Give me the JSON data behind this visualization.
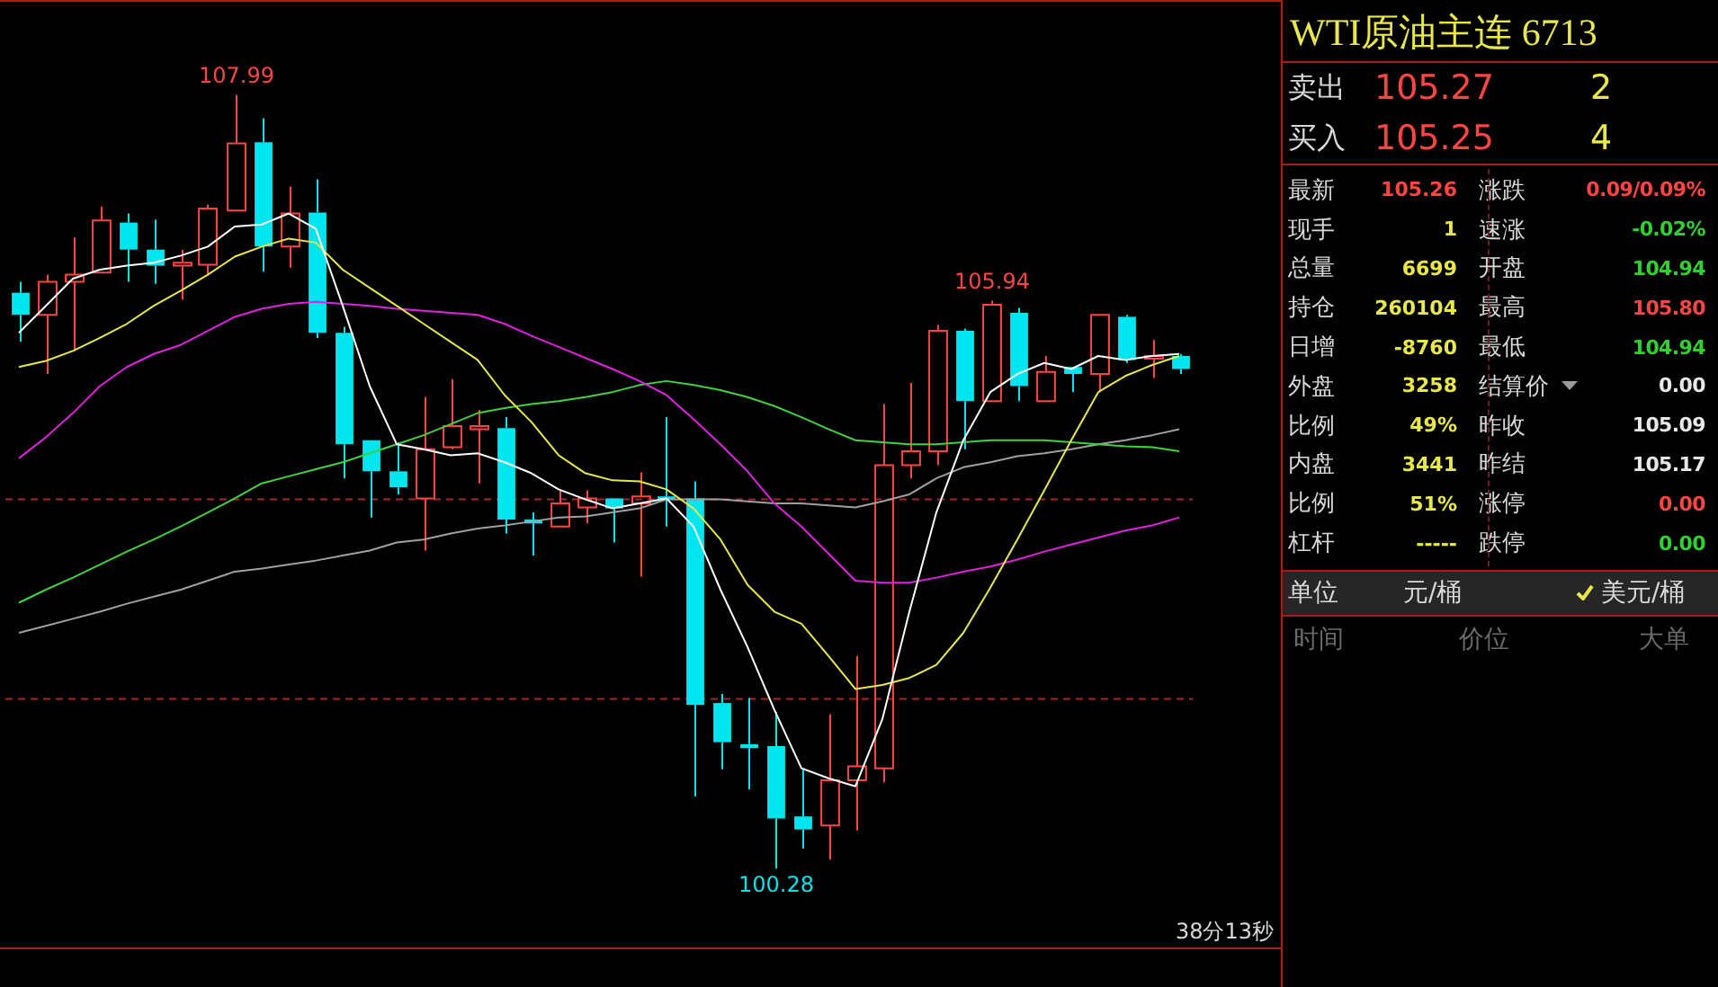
{
  "chart_data": [
    {
      "type": "candlestick",
      "categories": [
        null,
        null,
        null,
        null,
        null,
        null,
        null,
        null,
        null,
        null,
        null,
        null,
        null,
        null,
        null,
        null,
        null,
        null,
        null,
        null,
        null,
        null,
        null,
        null,
        null,
        null,
        null,
        null,
        null,
        null,
        null,
        null,
        null,
        null,
        null,
        null,
        null,
        null,
        null,
        null,
        null,
        null,
        null,
        null
      ],
      "ohlc": [
        [
          106.02,
          106.13,
          105.53,
          105.8
        ],
        [
          105.8,
          106.2,
          105.21,
          106.13
        ],
        [
          106.13,
          106.57,
          105.44,
          106.2
        ],
        [
          106.22,
          106.88,
          106.22,
          106.74
        ],
        [
          106.72,
          106.81,
          106.13,
          106.45
        ],
        [
          106.45,
          106.75,
          106.11,
          106.29
        ],
        [
          106.29,
          106.45,
          105.95,
          106.32
        ],
        [
          106.3,
          106.9,
          106.2,
          106.86
        ],
        [
          106.84,
          107.99,
          106.84,
          107.51
        ],
        [
          107.52,
          107.76,
          106.23,
          106.48
        ],
        [
          106.48,
          107.08,
          106.27,
          106.81
        ],
        [
          106.82,
          107.15,
          105.57,
          105.62
        ],
        [
          105.62,
          105.68,
          104.17,
          104.51
        ],
        [
          104.55,
          104.55,
          103.78,
          104.24
        ],
        [
          104.24,
          104.53,
          104.01,
          104.08
        ],
        [
          103.97,
          104.98,
          103.45,
          104.46
        ],
        [
          104.48,
          105.16,
          104.46,
          104.69
        ],
        [
          104.66,
          104.85,
          104.12,
          104.69
        ],
        [
          104.67,
          104.78,
          103.62,
          103.76
        ],
        [
          103.76,
          103.83,
          103.4,
          103.72
        ],
        [
          103.69,
          104.06,
          103.69,
          103.92
        ],
        [
          103.88,
          104.05,
          103.72,
          103.97
        ],
        [
          103.97,
          103.97,
          103.53,
          103.87
        ],
        [
          103.92,
          104.23,
          103.19,
          103.99
        ],
        [
          103.99,
          104.78,
          103.69,
          103.96
        ],
        [
          103.97,
          104.14,
          101.0,
          101.91
        ],
        [
          101.93,
          102.02,
          101.27,
          101.54
        ],
        [
          101.52,
          101.98,
          101.07,
          101.48
        ],
        [
          101.5,
          101.84,
          100.28,
          100.78
        ],
        [
          100.8,
          101.28,
          100.48,
          100.67
        ],
        [
          100.71,
          101.82,
          100.37,
          101.16
        ],
        [
          101.16,
          102.4,
          100.66,
          101.3
        ],
        [
          101.28,
          104.91,
          101.14,
          104.3
        ],
        [
          104.3,
          105.12,
          104.17,
          104.44
        ],
        [
          104.44,
          105.7,
          104.3,
          105.64
        ],
        [
          105.64,
          105.66,
          104.46,
          104.94
        ],
        [
          104.94,
          105.94,
          104.94,
          105.9
        ],
        [
          105.82,
          105.87,
          104.94,
          105.09
        ],
        [
          104.94,
          105.39,
          104.94,
          105.23
        ],
        [
          105.28,
          105.28,
          105.03,
          105.21
        ],
        [
          105.21,
          105.8,
          105.03,
          105.8
        ],
        [
          105.78,
          105.8,
          105.32,
          105.35
        ],
        [
          105.37,
          105.55,
          105.17,
          105.39
        ],
        [
          105.39,
          105.41,
          105.21,
          105.26
        ]
      ],
      "colors": [
        "#00e5ee",
        "#ff4444",
        "#ff4444",
        "#ff4444",
        "#00e5ee",
        "#00e5ee",
        "#ff4444",
        "#ff4444",
        "#ff4444",
        "#00e5ee",
        "#ff4444",
        "#00e5ee",
        "#00e5ee",
        "#00e5ee",
        "#00e5ee",
        "#ff4444",
        "#ff4444",
        "#ff4444",
        "#00e5ee",
        "#00e5ee",
        "#ff4444",
        "#ff4444",
        "#00e5ee",
        "#ff4444",
        "#00e5ee",
        "#00e5ee",
        "#00e5ee",
        "#00e5ee",
        "#00e5ee",
        "#00e5ee",
        "#ff4444",
        "#ff4444",
        "#ff4444",
        "#ff4444",
        "#ff4444",
        "#00e5ee",
        "#ff4444",
        "#00e5ee",
        "#ff4444",
        "#00e5ee",
        "#ff4444",
        "#00e5ee",
        "#ff4444",
        "#00e5ee"
      ],
      "value_labels": [
        null,
        null,
        null,
        null,
        null,
        null,
        null,
        null,
        "107.99",
        null,
        null,
        null,
        null,
        null,
        null,
        null,
        null,
        null,
        null,
        null,
        null,
        null,
        null,
        null,
        null,
        null,
        null,
        null,
        "100.28",
        null,
        null,
        null,
        null,
        null,
        null,
        null,
        "105.94",
        null,
        null,
        null,
        null,
        null,
        null,
        null
      ],
      "series": [
        {
          "type": "line",
          "color": "#ffffff",
          "values": [
            105.62,
            105.89,
            106.16,
            106.25,
            106.29,
            106.32,
            106.39,
            106.48,
            106.68,
            106.7,
            106.81,
            106.66,
            105.89,
            105.09,
            104.51,
            104.46,
            104.4,
            104.42,
            104.33,
            104.22,
            104.06,
            103.96,
            103.87,
            103.92,
            103.97,
            103.69,
            103.06,
            102.49,
            101.86,
            101.28,
            101.18,
            101.1,
            101.77,
            102.84,
            103.83,
            104.55,
            105.03,
            105.21,
            105.32,
            105.26,
            105.39,
            105.35,
            105.39,
            105.41
          ]
        },
        {
          "type": "line",
          "color": "#e8e84a",
          "values": [
            105.28,
            105.34,
            105.44,
            105.57,
            105.71,
            105.89,
            106.04,
            106.2,
            106.38,
            106.48,
            106.56,
            106.52,
            106.25,
            106.07,
            105.89,
            105.71,
            105.53,
            105.35,
            105.0,
            104.73,
            104.4,
            104.22,
            104.15,
            104.14,
            104.06,
            103.87,
            103.56,
            103.11,
            102.84,
            102.72,
            102.4,
            102.07,
            102.11,
            102.18,
            102.31,
            102.63,
            103.08,
            103.56,
            104.05,
            104.55,
            105.03,
            105.19,
            105.3,
            105.39
          ]
        },
        {
          "type": "line",
          "color": "#e020e0",
          "values": [
            104.37,
            104.58,
            104.82,
            105.09,
            105.28,
            105.41,
            105.5,
            105.64,
            105.78,
            105.86,
            105.91,
            105.93,
            105.91,
            105.89,
            105.86,
            105.84,
            105.82,
            105.8,
            105.71,
            105.59,
            105.48,
            105.37,
            105.26,
            105.14,
            105.0,
            104.76,
            104.51,
            104.24,
            103.92,
            103.69,
            103.42,
            103.15,
            103.13,
            103.13,
            103.18,
            103.24,
            103.29,
            103.36,
            103.44,
            103.51,
            103.58,
            103.65,
            103.7,
            103.78
          ]
        },
        {
          "type": "line",
          "color": "#40d040",
          "values": [
            102.93,
            103.06,
            103.18,
            103.31,
            103.44,
            103.56,
            103.69,
            103.83,
            103.97,
            104.12,
            104.19,
            104.26,
            104.33,
            104.42,
            104.51,
            104.6,
            104.71,
            104.82,
            104.87,
            104.91,
            104.94,
            104.98,
            105.03,
            105.1,
            105.14,
            105.1,
            105.05,
            104.98,
            104.89,
            104.78,
            104.66,
            104.55,
            104.53,
            104.51,
            104.51,
            104.53,
            104.55,
            104.55,
            104.55,
            104.53,
            104.51,
            104.49,
            104.48,
            104.44
          ]
        },
        {
          "type": "line",
          "color": "#a0a0a0",
          "values": [
            102.63,
            102.7,
            102.77,
            102.84,
            102.92,
            102.99,
            103.06,
            103.15,
            103.24,
            103.27,
            103.31,
            103.35,
            103.4,
            103.45,
            103.53,
            103.56,
            103.62,
            103.67,
            103.7,
            103.74,
            103.78,
            103.79,
            103.83,
            103.87,
            103.96,
            103.96,
            103.96,
            103.94,
            103.92,
            103.92,
            103.9,
            103.88,
            103.94,
            104.01,
            104.17,
            104.28,
            104.33,
            104.39,
            104.42,
            104.46,
            104.51,
            104.55,
            104.6,
            104.66
          ]
        }
      ],
      "ref_lines": [
        {
          "axis": "y",
          "value": 103.97,
          "color": "#a02828",
          "line_style": "dashed"
        },
        {
          "axis": "y",
          "value": 101.98,
          "color": "#a02828",
          "line_style": "dashed"
        }
      ],
      "annotations": [
        "38分13秒"
      ]
    },
    {
      "type": "other",
      "title": "WTI原油主连 6713",
      "annotations": [
        "卖出",
        "105.27",
        "2",
        "买入",
        "105.25",
        "4",
        "最新",
        "105.26",
        "涨跌",
        "0.09/0.09%",
        "现手",
        "1",
        "速涨",
        "-0.02%",
        "总量",
        "6699",
        "开盘",
        "104.94",
        "持仓",
        "260104",
        "最高",
        "105.80",
        "日增",
        "-8760",
        "最低",
        "104.94",
        "外盘",
        "3258",
        "结算价",
        "0.00",
        "比例",
        "49%",
        "昨收",
        "105.09",
        "内盘",
        "3441",
        "昨结",
        "105.17",
        "比例",
        "51%",
        "涨停",
        "0.00",
        "杠杆",
        "-----",
        "跌停",
        "0.00",
        "单位",
        "元/桶",
        "美元/桶",
        "时间",
        "价位",
        "大单"
      ]
    }
  ]
}
